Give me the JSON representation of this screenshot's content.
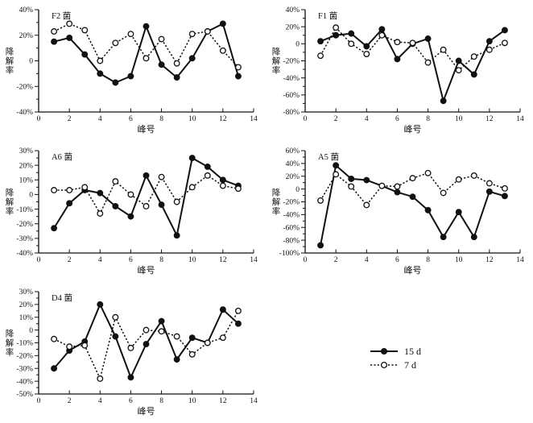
{
  "page": {
    "background": "#ffffff",
    "ink": "#111111"
  },
  "legend": {
    "items": [
      {
        "label": "15 d",
        "line": "solid",
        "marker": "filled"
      },
      {
        "label": "7 d",
        "line": "dotted",
        "marker": "open"
      }
    ]
  },
  "chart_data": [
    {
      "type": "line",
      "title": "F2 菌",
      "xlabel": "峰号",
      "ylabel": "降解率",
      "xlim": [
        0,
        14
      ],
      "xtick_step": 2,
      "ylim": [
        -40,
        40
      ],
      "ytick_major": 20,
      "ytick_minor": 10,
      "x": [
        1,
        2,
        3,
        4,
        5,
        6,
        7,
        8,
        9,
        10,
        11,
        12,
        13
      ],
      "series": [
        {
          "name": "15 d",
          "style": "solid",
          "marker": "filled",
          "values": [
            15,
            18,
            5,
            -10,
            -17,
            -12,
            27,
            -3,
            -13,
            2,
            23,
            29,
            -12
          ]
        },
        {
          "name": "7 d",
          "style": "dotted",
          "marker": "open",
          "values": [
            23,
            29,
            24,
            0,
            14,
            21,
            2,
            17,
            -2,
            21,
            23,
            8,
            -5
          ]
        }
      ]
    },
    {
      "type": "line",
      "title": "F1 菌",
      "xlabel": "峰号",
      "ylabel": "降解率",
      "xlim": [
        0,
        14
      ],
      "xtick_step": 2,
      "ylim": [
        -80,
        40
      ],
      "ytick_major": 20,
      "ytick_minor": 10,
      "x": [
        1,
        2,
        3,
        4,
        5,
        6,
        7,
        8,
        9,
        10,
        11,
        12,
        13
      ],
      "series": [
        {
          "name": "15 d",
          "style": "solid",
          "marker": "filled",
          "values": [
            3,
            10,
            12,
            -3,
            17,
            -18,
            0,
            6,
            -67,
            -20,
            -36,
            3,
            16
          ]
        },
        {
          "name": "7 d",
          "style": "dotted",
          "marker": "open",
          "values": [
            -14,
            19,
            0,
            -12,
            10,
            2,
            1,
            -22,
            -7,
            -31,
            -15,
            -7,
            1
          ]
        }
      ]
    },
    {
      "type": "line",
      "title": "A6 菌",
      "xlabel": "峰号",
      "ylabel": "降解率",
      "xlim": [
        0,
        14
      ],
      "xtick_step": 2,
      "ylim": [
        -40,
        30
      ],
      "ytick_major": 10,
      "ytick_minor": 5,
      "x": [
        1,
        2,
        3,
        4,
        5,
        6,
        7,
        8,
        9,
        10,
        11,
        12,
        13
      ],
      "series": [
        {
          "name": "15 d",
          "style": "solid",
          "marker": "filled",
          "values": [
            -23,
            -6,
            3,
            1,
            -8,
            -15,
            13,
            -7,
            -28,
            25,
            19,
            10,
            6
          ]
        },
        {
          "name": "7 d",
          "style": "dotted",
          "marker": "open",
          "values": [
            3,
            3,
            5,
            -13,
            9,
            0,
            -8,
            12,
            -5,
            5,
            13,
            6,
            4
          ]
        }
      ]
    },
    {
      "type": "line",
      "title": "A5 菌",
      "xlabel": "峰号",
      "ylabel": "降解率",
      "xlim": [
        0,
        14
      ],
      "xtick_step": 2,
      "ylim": [
        -100,
        60
      ],
      "ytick_major": 20,
      "ytick_minor": 10,
      "x": [
        1,
        2,
        3,
        4,
        5,
        6,
        7,
        8,
        9,
        10,
        11,
        12,
        13
      ],
      "series": [
        {
          "name": "15 d",
          "style": "solid",
          "marker": "filled",
          "values": [
            -88,
            37,
            16,
            14,
            5,
            -5,
            -12,
            -33,
            -75,
            -36,
            -75,
            -4,
            -11
          ]
        },
        {
          "name": "7 d",
          "style": "dotted",
          "marker": "open",
          "values": [
            -18,
            23,
            4,
            -25,
            5,
            4,
            17,
            25,
            -6,
            15,
            21,
            9,
            1
          ]
        }
      ]
    },
    {
      "type": "line",
      "title": "D4 菌",
      "xlabel": "峰号",
      "ylabel": "降解率",
      "xlim": [
        0,
        14
      ],
      "xtick_step": 2,
      "ylim": [
        -50,
        30
      ],
      "ytick_major": 10,
      "ytick_minor": 5,
      "x": [
        1,
        2,
        3,
        4,
        5,
        6,
        7,
        8,
        9,
        10,
        11,
        12,
        13
      ],
      "series": [
        {
          "name": "15 d",
          "style": "solid",
          "marker": "filled",
          "values": [
            -30,
            -16,
            -9,
            20,
            -5,
            -37,
            -11,
            7,
            -23,
            -6,
            -10,
            16,
            5
          ]
        },
        {
          "name": "7 d",
          "style": "dotted",
          "marker": "open",
          "values": [
            -7,
            -13,
            -12,
            -38,
            10,
            -14,
            0,
            -1,
            -5,
            -19,
            -10,
            -6,
            15
          ]
        }
      ]
    }
  ]
}
